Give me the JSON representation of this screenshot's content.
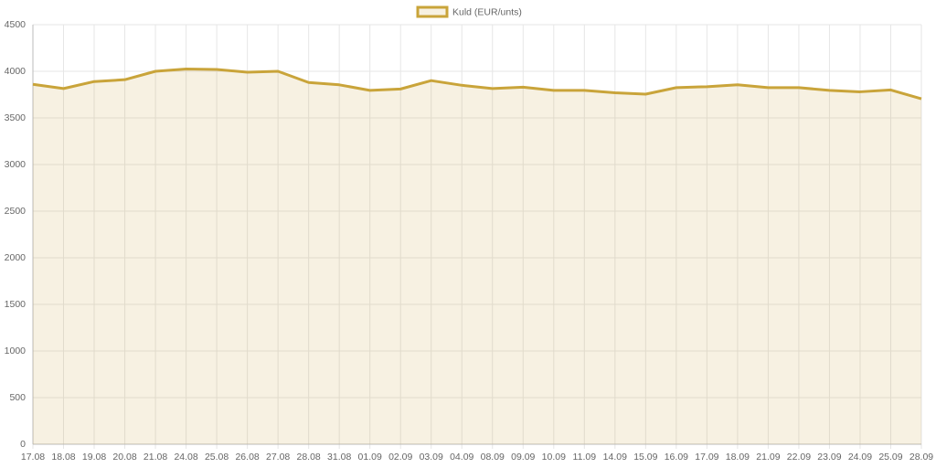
{
  "chart_data": {
    "type": "line",
    "categories": [
      "17.08",
      "18.08",
      "19.08",
      "20.08",
      "21.08",
      "24.08",
      "25.08",
      "26.08",
      "27.08",
      "28.08",
      "31.08",
      "01.09",
      "02.09",
      "03.09",
      "04.09",
      "08.09",
      "09.09",
      "10.09",
      "11.09",
      "14.09",
      "15.09",
      "16.09",
      "17.09",
      "18.09",
      "21.09",
      "22.09",
      "23.09",
      "24.09",
      "25.09",
      "28.09"
    ],
    "series": [
      {
        "name": "Kuld (EUR/unts)",
        "color": "#c9a43a",
        "fill": "rgba(201,164,58,0.15)",
        "values": [
          3860,
          3815,
          3890,
          3910,
          4000,
          4025,
          4020,
          3990,
          4000,
          3880,
          3855,
          3795,
          3810,
          3900,
          3850,
          3815,
          3830,
          3795,
          3795,
          3770,
          3755,
          3825,
          3835,
          3855,
          3825,
          3825,
          3795,
          3780,
          3800,
          3705
        ]
      }
    ],
    "ylim": [
      0,
      4500
    ],
    "yticks": [
      0,
      500,
      1000,
      1500,
      2000,
      2500,
      3000,
      3500,
      4000,
      4500
    ],
    "grid": true,
    "legend": "top"
  }
}
